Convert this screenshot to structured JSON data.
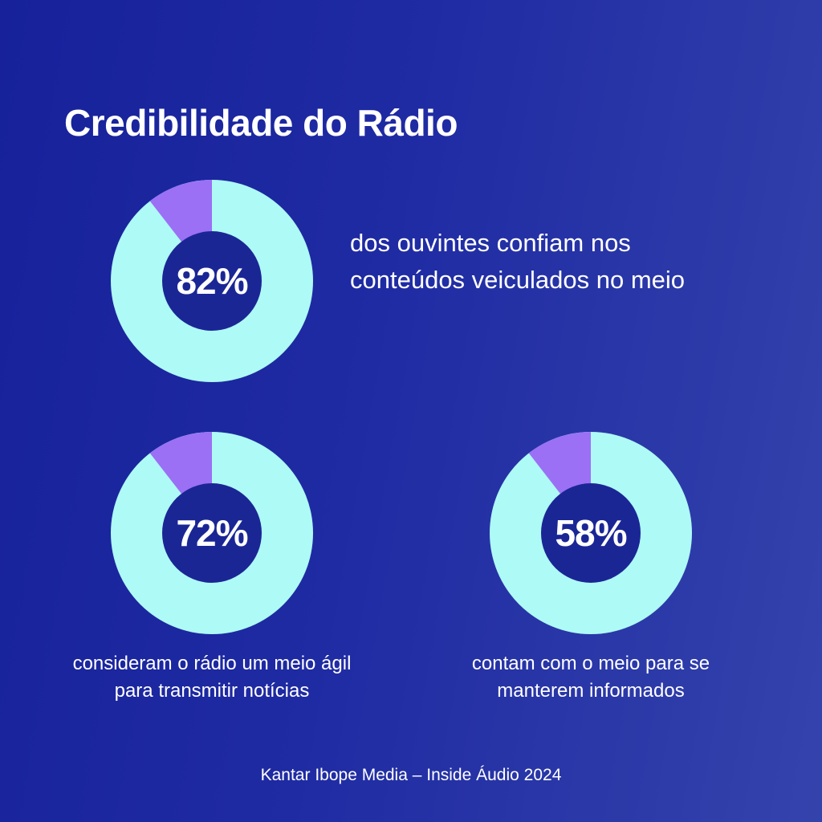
{
  "title": "Credibilidade do Rádio",
  "source": "Kantar Ibope Media – Inside Áudio 2024",
  "colors": {
    "background_start": "#16219a",
    "background_end": "#3443ac",
    "main_segment": "#aefaf6",
    "other_segment": "#9b70f5",
    "hole": "#1b2695"
  },
  "chart_data": [
    {
      "type": "pie",
      "label": "82%",
      "value": 82,
      "caption": "dos ouvintes confiam nos conteúdos veiculados no meio"
    },
    {
      "type": "pie",
      "label": "72%",
      "value": 72,
      "caption": "consideram o rádio um meio ágil para transmitir notícias"
    },
    {
      "type": "pie",
      "label": "58%",
      "value": 58,
      "caption": "contam com o meio para se manterem informados"
    }
  ]
}
